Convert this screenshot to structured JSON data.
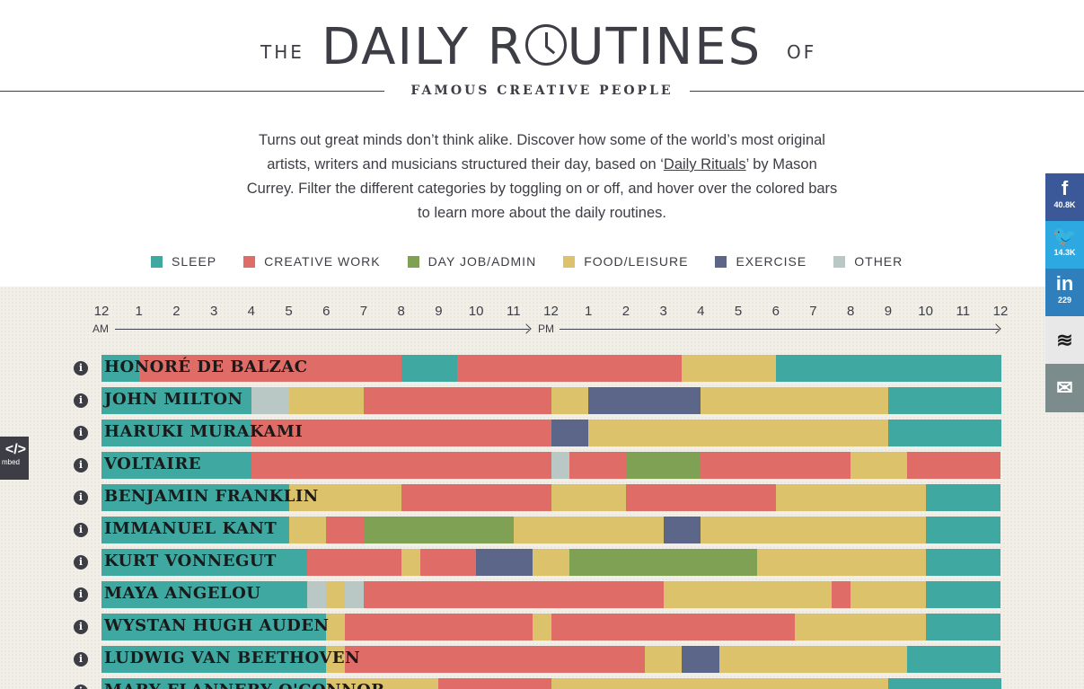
{
  "header": {
    "the": "THE",
    "title_pre": "DAILY R",
    "title_post": "UTINES",
    "of": "OF",
    "subtitle": "FAMOUS CREATIVE PEOPLE"
  },
  "intro": {
    "part1": "Turns out great minds don’t think alike. Discover how some of the world’s most original artists, writers and musicians structured their day, based on ‘",
    "link": "Daily Rituals",
    "part2": "’ by Mason Currey. Filter the different categories by toggling on or off, and hover over the colored bars to learn more about the daily routines."
  },
  "legend": [
    {
      "label": "SLEEP",
      "color": "#3fa8a1"
    },
    {
      "label": "CREATIVE WORK",
      "color": "#e06c68"
    },
    {
      "label": "DAY JOB/ADMIN",
      "color": "#7ea154"
    },
    {
      "label": "FOOD/LEISURE",
      "color": "#dcc36b"
    },
    {
      "label": "EXERCISE",
      "color": "#5c6688"
    },
    {
      "label": "OTHER",
      "color": "#b9c8c5"
    }
  ],
  "axis": {
    "hours": [
      "12",
      "1",
      "2",
      "3",
      "4",
      "5",
      "6",
      "7",
      "8",
      "9",
      "10",
      "11",
      "12",
      "1",
      "2",
      "3",
      "4",
      "5",
      "6",
      "7",
      "8",
      "9",
      "10",
      "11",
      "12"
    ],
    "am": "AM",
    "pm": "PM"
  },
  "colors": {
    "sleep": "#3fa8a1",
    "work": "#e06c68",
    "job": "#7ea154",
    "food": "#dcc36b",
    "exercise": "#5c6688",
    "other": "#b9c8c5"
  },
  "people": [
    {
      "name": "HONORÉ DE BALZAC",
      "segments": [
        [
          "sleep",
          0,
          1
        ],
        [
          "work",
          1,
          8
        ],
        [
          "sleep",
          8,
          9.5
        ],
        [
          "work",
          9.5,
          15.5
        ],
        [
          "food",
          15.5,
          18
        ],
        [
          "sleep",
          18,
          24
        ]
      ]
    },
    {
      "name": "JOHN MILTON",
      "segments": [
        [
          "sleep",
          0,
          4
        ],
        [
          "other",
          4,
          5
        ],
        [
          "food",
          5,
          7
        ],
        [
          "work",
          7,
          12
        ],
        [
          "food",
          12,
          13
        ],
        [
          "exercise",
          13,
          16
        ],
        [
          "food",
          16,
          21
        ],
        [
          "sleep",
          21,
          24
        ]
      ]
    },
    {
      "name": "HARUKI MURAKAMI",
      "segments": [
        [
          "sleep",
          0,
          4
        ],
        [
          "work",
          4,
          12
        ],
        [
          "exercise",
          12,
          13
        ],
        [
          "food",
          13,
          21
        ],
        [
          "sleep",
          21,
          24
        ]
      ]
    },
    {
      "name": "VOLTAIRE",
      "segments": [
        [
          "sleep",
          0,
          4
        ],
        [
          "work",
          4,
          12
        ],
        [
          "other",
          12,
          12.5
        ],
        [
          "work",
          12.5,
          14
        ],
        [
          "job",
          14,
          16
        ],
        [
          "work",
          16,
          20
        ],
        [
          "food",
          20,
          21.5
        ],
        [
          "work",
          21.5,
          24
        ]
      ]
    },
    {
      "name": "BENJAMIN FRANKLIN",
      "segments": [
        [
          "sleep",
          0,
          5
        ],
        [
          "food",
          5,
          8
        ],
        [
          "work",
          8,
          12
        ],
        [
          "food",
          12,
          14
        ],
        [
          "work",
          14,
          18
        ],
        [
          "food",
          18,
          22
        ],
        [
          "sleep",
          22,
          24
        ]
      ]
    },
    {
      "name": "IMMANUEL KANT",
      "segments": [
        [
          "sleep",
          0,
          5
        ],
        [
          "food",
          5,
          6
        ],
        [
          "work",
          6,
          7
        ],
        [
          "job",
          7,
          11
        ],
        [
          "food",
          11,
          15
        ],
        [
          "exercise",
          15,
          16
        ],
        [
          "food",
          16,
          22
        ],
        [
          "sleep",
          22,
          24
        ]
      ]
    },
    {
      "name": "KURT VONNEGUT",
      "segments": [
        [
          "sleep",
          0,
          5.5
        ],
        [
          "work",
          5.5,
          8
        ],
        [
          "food",
          8,
          8.5
        ],
        [
          "work",
          8.5,
          10
        ],
        [
          "exercise",
          10,
          11.5
        ],
        [
          "food",
          11.5,
          12.5
        ],
        [
          "job",
          12.5,
          17.5
        ],
        [
          "food",
          17.5,
          22
        ],
        [
          "sleep",
          22,
          24
        ]
      ]
    },
    {
      "name": "MAYA ANGELOU",
      "segments": [
        [
          "sleep",
          0,
          5.5
        ],
        [
          "other",
          5.5,
          6
        ],
        [
          "food",
          6,
          6.5
        ],
        [
          "other",
          6.5,
          7
        ],
        [
          "work",
          7,
          15
        ],
        [
          "food",
          15,
          19.5
        ],
        [
          "work",
          19.5,
          20
        ],
        [
          "food",
          20,
          22
        ],
        [
          "sleep",
          22,
          24
        ]
      ]
    },
    {
      "name": "WYSTAN HUGH AUDEN",
      "segments": [
        [
          "sleep",
          0,
          6
        ],
        [
          "food",
          6,
          6.5
        ],
        [
          "work",
          6.5,
          11.5
        ],
        [
          "food",
          11.5,
          12
        ],
        [
          "work",
          12,
          18.5
        ],
        [
          "food",
          18.5,
          22
        ],
        [
          "sleep",
          22,
          24
        ]
      ]
    },
    {
      "name": "LUDWIG VAN BEETHOVEN",
      "segments": [
        [
          "sleep",
          0,
          6
        ],
        [
          "food",
          6,
          6.5
        ],
        [
          "work",
          6.5,
          14.5
        ],
        [
          "food",
          14.5,
          15.5
        ],
        [
          "exercise",
          15.5,
          16.5
        ],
        [
          "food",
          16.5,
          21.5
        ],
        [
          "sleep",
          21.5,
          24
        ]
      ]
    },
    {
      "name": "MARY FLANNERY O'CONNOR",
      "segments": [
        [
          "sleep",
          0,
          6
        ],
        [
          "food",
          6,
          9
        ],
        [
          "work",
          9,
          12
        ],
        [
          "food",
          12,
          21
        ],
        [
          "sleep",
          21,
          24
        ]
      ]
    }
  ],
  "social": [
    {
      "glyph": "f",
      "count": "40.8K",
      "color": "#3b5998"
    },
    {
      "glyph": "🐦",
      "count": "14.3K",
      "color": "#2ea8e0"
    },
    {
      "glyph": "in",
      "count": "229",
      "color": "#2f7fbd"
    },
    {
      "glyph": "≋",
      "count": "",
      "color": "#e8e8e8"
    },
    {
      "glyph": "✉",
      "count": "",
      "color": "#7c8c8c"
    }
  ],
  "embed": {
    "glyph": "</>",
    "label": "mbed"
  }
}
